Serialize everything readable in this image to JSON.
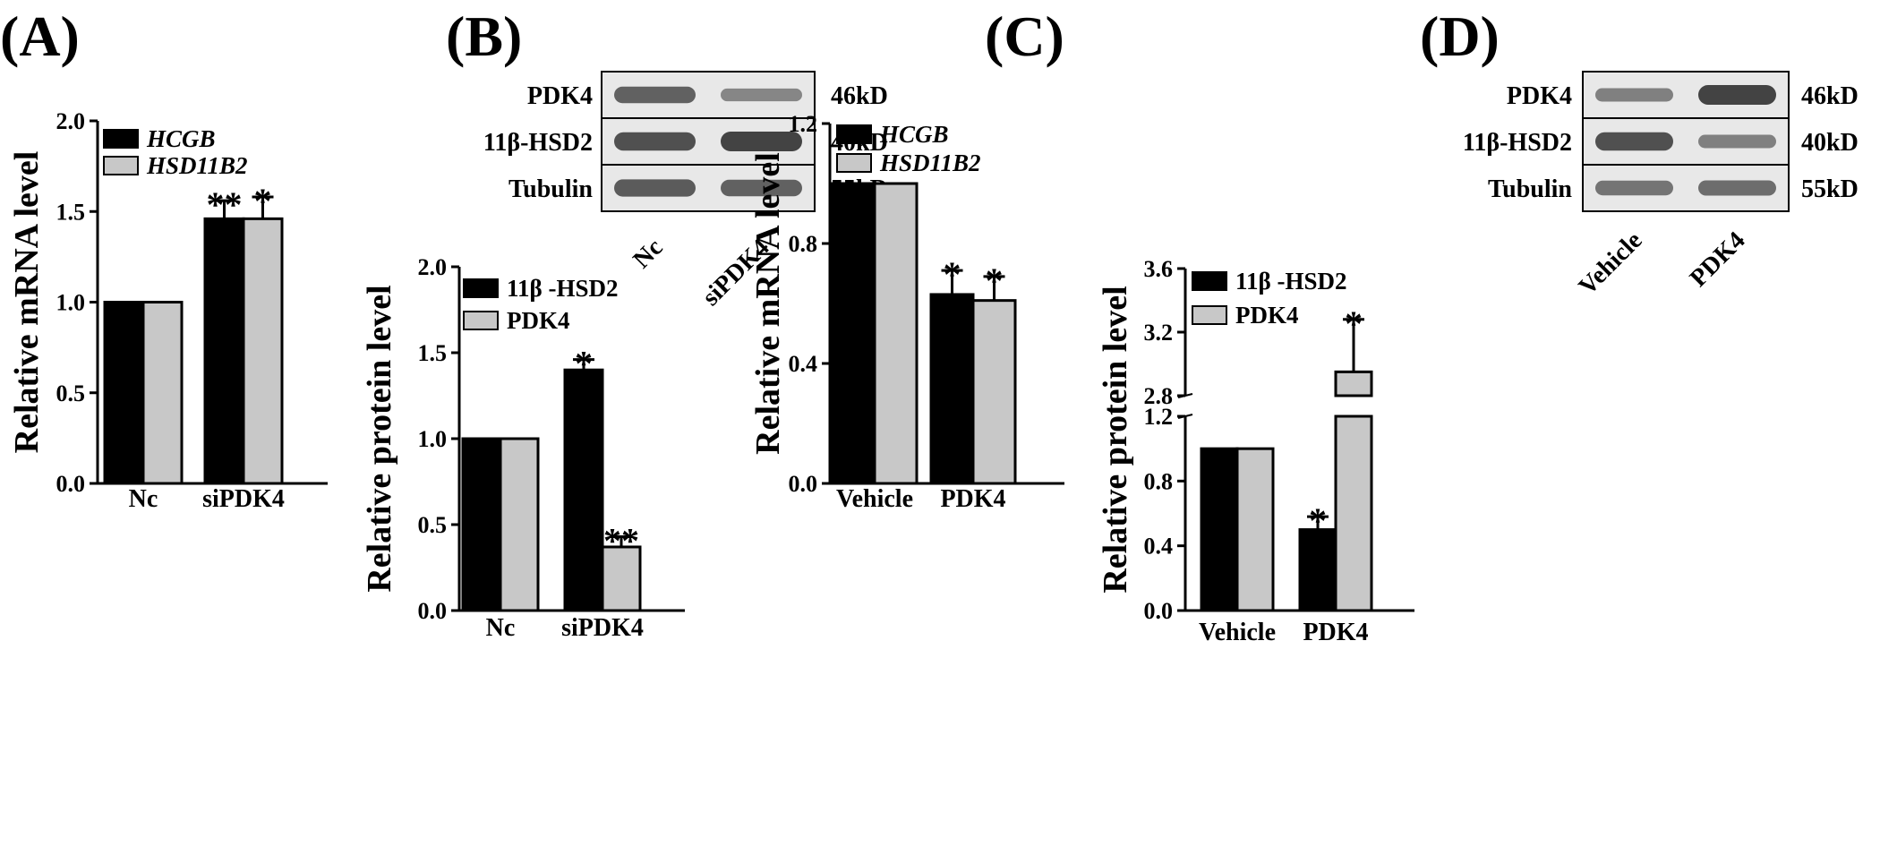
{
  "colors": {
    "series_a": "#000000",
    "series_b": "#c8c8c8",
    "blot_bg": "#e8e8e8",
    "band": "#3a3a3a"
  },
  "panels": {
    "A": {
      "label": "(A)"
    },
    "B": {
      "label": "(B)"
    },
    "C": {
      "label": "(C)"
    },
    "D": {
      "label": "(D)"
    }
  },
  "blots": {
    "B": {
      "rows": [
        "PDK4",
        "11β-HSD2",
        "Tubulin"
      ],
      "sizes": [
        "46kD",
        "40kD",
        "55kD"
      ],
      "lanes": [
        "Nc",
        "siPDK4"
      ],
      "intensity": [
        [
          0.75,
          0.45
        ],
        [
          0.9,
          1.0
        ],
        [
          0.8,
          0.75
        ]
      ]
    },
    "D": {
      "rows": [
        "PDK4",
        "11β-HSD2",
        "Tubulin"
      ],
      "sizes": [
        "46kD",
        "40kD",
        "55kD"
      ],
      "lanes": [
        "Vehicle",
        "PDK4"
      ],
      "intensity": [
        [
          0.5,
          1.0
        ],
        [
          0.9,
          0.5
        ],
        [
          0.6,
          0.65
        ]
      ]
    }
  },
  "chart_data": [
    {
      "id": "A",
      "type": "bar",
      "ylabel": "Relative  mRNA level",
      "categories": [
        "Nc",
        "siPDK4"
      ],
      "series": [
        {
          "name": "HCGB",
          "values": [
            1.0,
            1.46
          ],
          "errors": [
            0,
            0.1
          ],
          "stars": [
            "",
            "**"
          ]
        },
        {
          "name": "HSD11B2",
          "values": [
            1.0,
            1.46
          ],
          "errors": [
            0,
            0.12
          ],
          "stars": [
            "",
            "*"
          ]
        }
      ],
      "ylim": [
        0,
        2.0
      ],
      "yticks": [
        "0.0",
        "0.5",
        "1.0",
        "1.5",
        "2.0"
      ],
      "legend_italic": true,
      "legend": "top-left"
    },
    {
      "id": "B",
      "type": "bar",
      "ylabel": "Relative protein level",
      "categories": [
        "Nc",
        "siPDK4"
      ],
      "series": [
        {
          "name": "11β -HSD2",
          "values": [
            1.0,
            1.4
          ],
          "errors": [
            0,
            0.06
          ],
          "stars": [
            "",
            "*"
          ]
        },
        {
          "name": "PDK4",
          "values": [
            1.0,
            0.37
          ],
          "errors": [
            0,
            0.06
          ],
          "stars": [
            "",
            "**"
          ]
        }
      ],
      "ylim": [
        0,
        2.0
      ],
      "yticks": [
        "0.0",
        "0.5",
        "1.0",
        "1.5",
        "2.0"
      ],
      "legend_italic": false,
      "legend": "top-left"
    },
    {
      "id": "C",
      "type": "bar",
      "ylabel": "Relative  mRNA level",
      "categories": [
        "Vehicle",
        "PDK4"
      ],
      "series": [
        {
          "name": "HCGB",
          "values": [
            1.0,
            0.63
          ],
          "errors": [
            0,
            0.08
          ],
          "stars": [
            "",
            "*"
          ]
        },
        {
          "name": "HSD11B2",
          "values": [
            1.0,
            0.61
          ],
          "errors": [
            0,
            0.08
          ],
          "stars": [
            "",
            "*"
          ]
        }
      ],
      "ylim": [
        0,
        1.2
      ],
      "yticks": [
        "0.0",
        "0.4",
        "0.8",
        "1.2"
      ],
      "legend_italic": true,
      "legend": "top-left"
    },
    {
      "id": "D",
      "type": "bar",
      "ylabel": "Relative protein level",
      "categories": [
        "Vehicle",
        "PDK4"
      ],
      "series": [
        {
          "name": "11β -HSD2",
          "values": [
            1.0,
            0.5
          ],
          "errors": [
            0,
            0.08
          ],
          "stars": [
            "",
            "*"
          ]
        },
        {
          "name": "PDK4",
          "values": [
            1.0,
            2.95
          ],
          "errors": [
            0,
            0.33
          ],
          "stars": [
            "",
            "*"
          ]
        }
      ],
      "broken_axis": {
        "lower": [
          0,
          1.2
        ],
        "upper": [
          2.8,
          3.6
        ]
      },
      "yticks": [
        "0.0",
        "0.4",
        "0.8",
        "1.2",
        "2.8",
        "3.2",
        "3.6"
      ],
      "legend_italic": false,
      "legend": "top-left"
    }
  ]
}
